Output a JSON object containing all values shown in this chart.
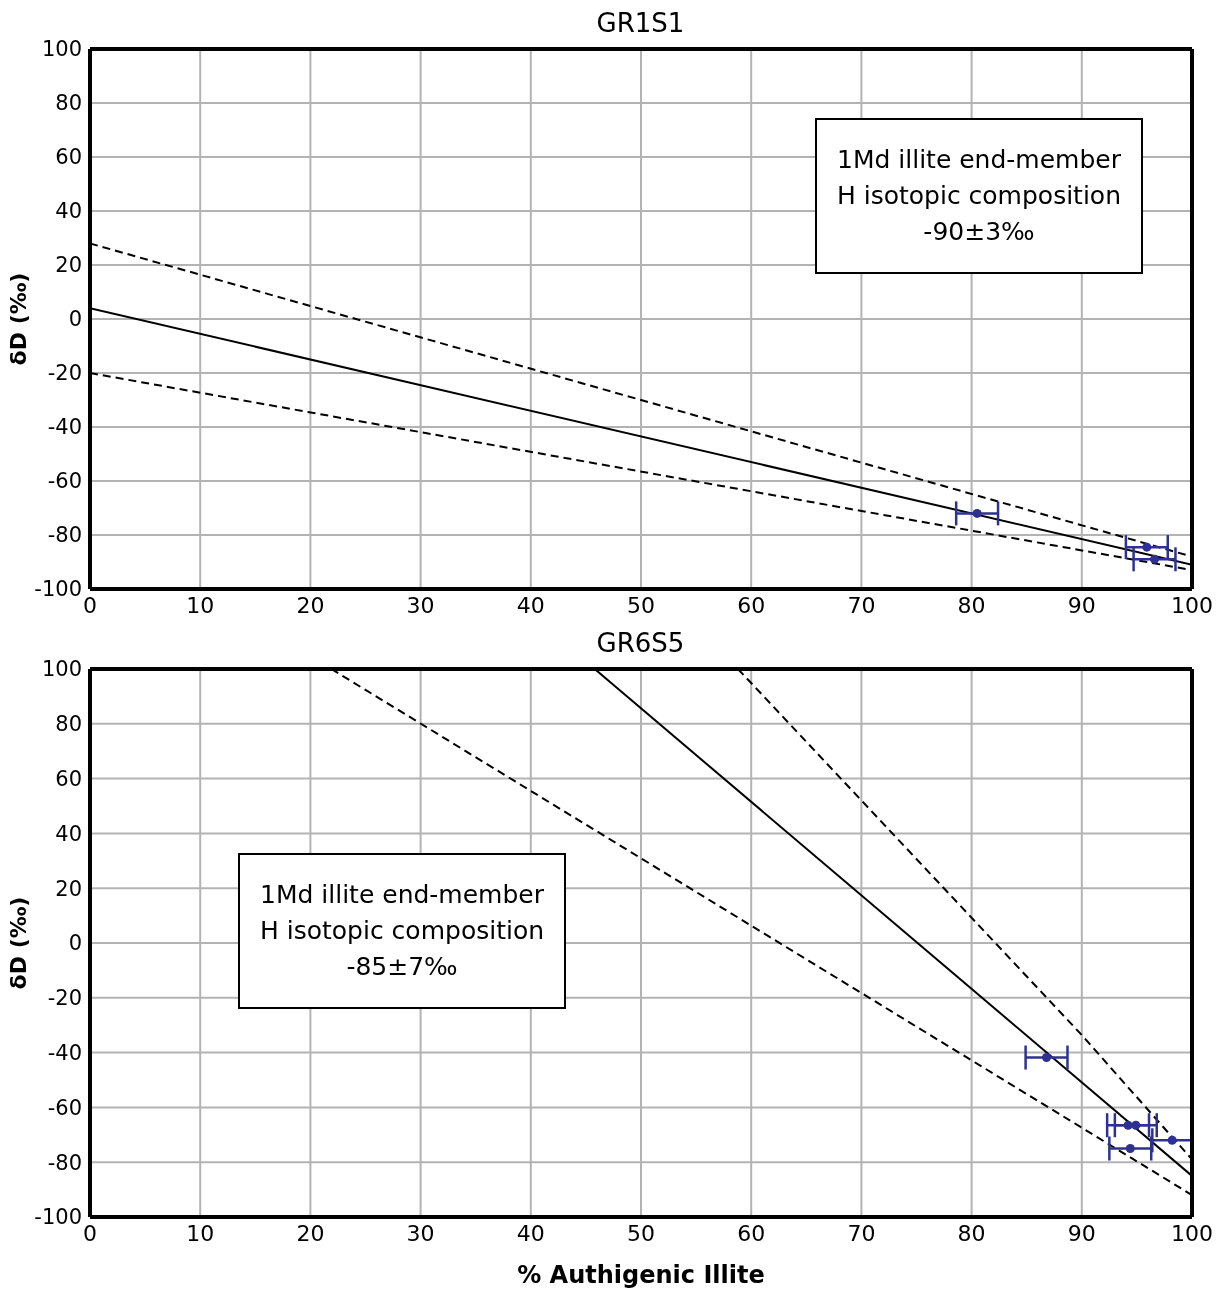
{
  "chart_data": [
    {
      "type": "scatter",
      "title": "GR1S1",
      "ylabel": "δD (‰)",
      "xlim": [
        0,
        100
      ],
      "ylim": [
        -100,
        100
      ],
      "xticks": [
        0,
        10,
        20,
        30,
        40,
        50,
        60,
        70,
        80,
        90,
        100
      ],
      "yticks": [
        -100,
        -80,
        -60,
        -40,
        -20,
        0,
        20,
        40,
        60,
        80,
        100
      ],
      "grid": true,
      "legend": false,
      "annotations": [
        "1Md illite end-member\nH isotopic composition\n-90±3‰"
      ],
      "series": [
        {
          "type": "line",
          "color": "#000000",
          "line_style": "solid",
          "marker": "none",
          "x": [
            0,
            100
          ],
          "values": [
            4,
            -91
          ]
        },
        {
          "type": "line",
          "color": "#000000",
          "line_style": "dashed",
          "marker": "none",
          "x": [
            0,
            100
          ],
          "values": [
            28,
            -88
          ]
        },
        {
          "type": "line",
          "color": "#000000",
          "line_style": "dashed",
          "marker": "none",
          "x": [
            0,
            100
          ],
          "values": [
            -20,
            -93
          ]
        },
        {
          "type": "scatter",
          "color": "#2e3192",
          "marker": "circle",
          "x": [
            80.5,
            95.9,
            96.6
          ],
          "values": [
            -72,
            -84.5,
            -89
          ],
          "xerrors": [
            1.9,
            1.9,
            1.9
          ]
        }
      ]
    },
    {
      "type": "scatter",
      "title": "GR6S5",
      "xlabel": "% Authigenic Illite",
      "ylabel": "δD (‰)",
      "xlim": [
        0,
        100
      ],
      "ylim": [
        -100,
        100
      ],
      "xticks": [
        0,
        10,
        20,
        30,
        40,
        50,
        60,
        70,
        80,
        90,
        100
      ],
      "yticks": [
        -100,
        -80,
        -60,
        -40,
        -20,
        0,
        20,
        40,
        60,
        80,
        100
      ],
      "grid": true,
      "legend": false,
      "annotations": [
        "1Md illite end-member\nH isotopic composition\n-85±7‰"
      ],
      "series": [
        {
          "type": "line",
          "color": "#000000",
          "line_style": "solid",
          "marker": "none",
          "x": [
            45.8,
            100
          ],
          "values": [
            100,
            -85
          ]
        },
        {
          "type": "line",
          "color": "#000000",
          "line_style": "dashed",
          "marker": "none",
          "x": [
            58.8,
            90,
            100
          ],
          "values": [
            100,
            -33.6,
            -79
          ]
        },
        {
          "type": "line",
          "color": "#000000",
          "line_style": "dashed",
          "marker": "none",
          "x": [
            21.9,
            100
          ],
          "values": [
            100,
            -92
          ]
        },
        {
          "type": "scatter",
          "color": "#2e3192",
          "marker": "circle",
          "x": [
            86.8,
            94.2,
            94.9,
            94.4,
            98.2
          ],
          "values": [
            -41.8,
            -66.5,
            -66.5,
            -75,
            -72
          ],
          "xerrors": [
            1.9,
            1.9,
            1.9,
            1.9,
            1.8
          ]
        }
      ]
    }
  ]
}
